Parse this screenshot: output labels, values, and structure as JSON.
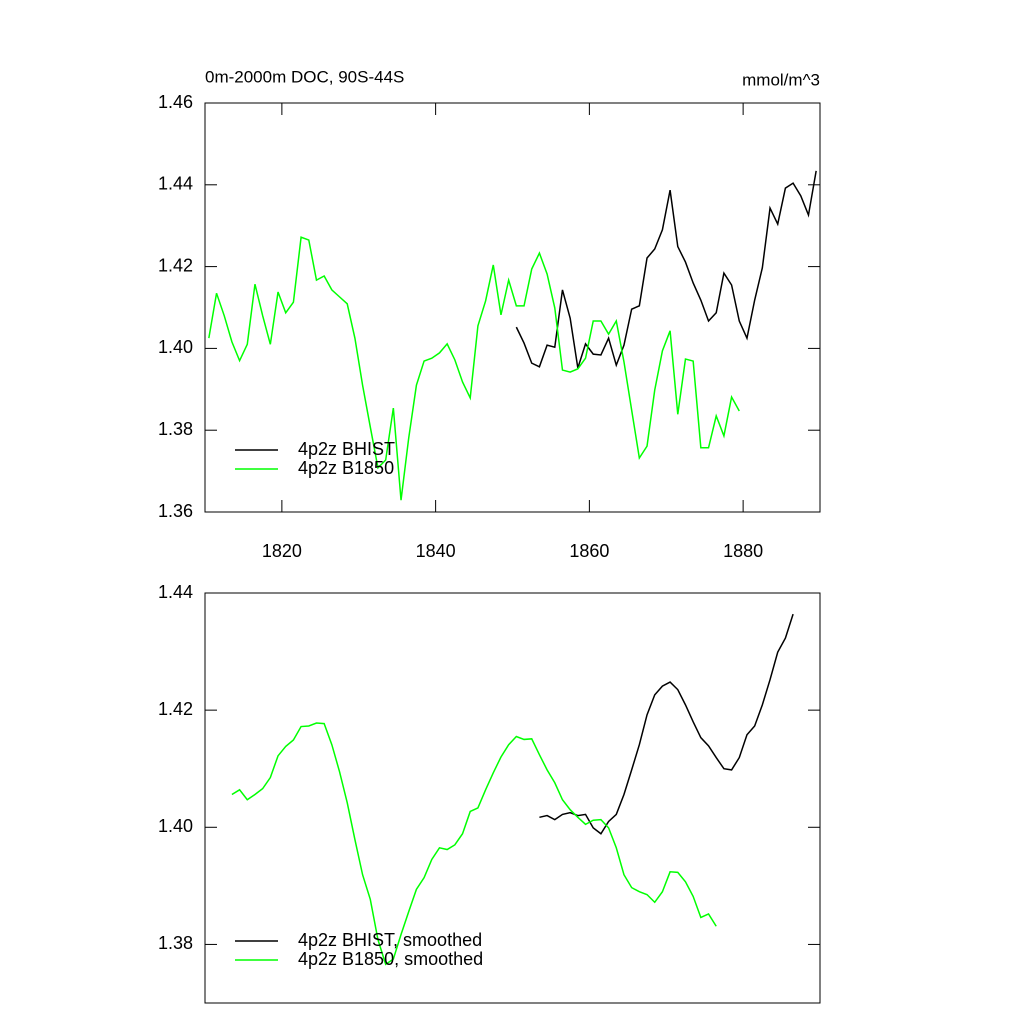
{
  "chart_data": [
    {
      "type": "line",
      "title": "0m-2000m DOC, 90S-44S",
      "subtitle": "mmol/m^3",
      "xlim": [
        1810,
        1890
      ],
      "xticks": [
        1820,
        1840,
        1860,
        1880
      ],
      "ylim": [
        1.36,
        1.46
      ],
      "yticks": [
        1.36,
        1.38,
        {
          "value": 1.4,
          "label": "1.40"
        },
        1.42,
        1.44,
        1.46
      ],
      "legend": "lower left",
      "series": [
        {
          "name": "4p2z BHIST",
          "color": "#000000",
          "x": [
            1850.5,
            1851.5,
            1852.5,
            1853.5,
            1854.5,
            1855.5,
            1856.5,
            1857.5,
            1858.5,
            1859.5,
            1860.5,
            1861.5,
            1862.5,
            1863.5,
            1864.5,
            1865.5,
            1866.5,
            1867.5,
            1868.5,
            1869.5,
            1870.5,
            1871.5,
            1872.5,
            1873.5,
            1874.5,
            1875.5,
            1876.5,
            1877.5,
            1878.5,
            1879.5,
            1880.5,
            1881.5,
            1882.5,
            1883.5,
            1884.5,
            1885.5,
            1886.5,
            1887.5,
            1888.5,
            1889.5
          ],
          "values": [
            1.4052,
            1.4013,
            1.3964,
            1.3955,
            1.4008,
            1.4003,
            1.4143,
            1.4074,
            1.3952,
            1.4011,
            1.3986,
            1.3984,
            1.4025,
            1.3959,
            1.4008,
            1.4096,
            1.4104,
            1.4221,
            1.4243,
            1.429,
            1.4387,
            1.4249,
            1.4211,
            1.416,
            1.4118,
            1.4067,
            1.4087,
            1.4184,
            1.4155,
            1.4067,
            1.4025,
            1.4118,
            1.4197,
            1.4343,
            1.4304,
            1.4392,
            1.4404,
            1.4373,
            1.4326,
            1.4434
          ]
        },
        {
          "name": "4p2z B1850",
          "color": "#00ff00",
          "x": [
            1810.5,
            1811.5,
            1812.5,
            1813.5,
            1814.5,
            1815.5,
            1816.5,
            1817.5,
            1818.5,
            1819.5,
            1820.5,
            1821.5,
            1822.5,
            1823.5,
            1824.5,
            1825.5,
            1826.5,
            1827.5,
            1828.5,
            1829.5,
            1830.5,
            1831.5,
            1832.5,
            1833.5,
            1834.5,
            1835.5,
            1836.5,
            1837.5,
            1838.5,
            1839.5,
            1840.5,
            1841.5,
            1842.5,
            1843.5,
            1844.5,
            1845.5,
            1846.5,
            1847.5,
            1848.5,
            1849.5,
            1850.5,
            1851.5,
            1852.5,
            1853.5,
            1854.5,
            1855.5,
            1856.5,
            1857.5,
            1858.5,
            1859.5,
            1860.5,
            1861.5,
            1862.5,
            1863.5,
            1864.5,
            1865.5,
            1866.5,
            1867.5,
            1868.5,
            1869.5,
            1870.5,
            1871.5,
            1872.5,
            1873.5,
            1874.5,
            1875.5,
            1876.5,
            1877.5,
            1878.5,
            1879.5
          ],
          "values": [
            1.4025,
            1.4135,
            1.408,
            1.4016,
            1.397,
            1.401,
            1.4157,
            1.408,
            1.401,
            1.4138,
            1.4087,
            1.4113,
            1.4272,
            1.4265,
            1.4167,
            1.4177,
            1.4143,
            1.4126,
            1.4109,
            1.4025,
            1.391,
            1.3808,
            1.3708,
            1.3727,
            1.3854,
            1.3629,
            1.3781,
            1.391,
            1.3969,
            1.3976,
            1.3989,
            1.4011,
            1.3972,
            1.3918,
            1.3879,
            1.4055,
            1.4116,
            1.4204,
            1.4082,
            1.4167,
            1.4104,
            1.4104,
            1.4194,
            1.4233,
            1.4182,
            1.4099,
            1.3947,
            1.3942,
            1.395,
            1.3976,
            1.4067,
            1.4067,
            1.4035,
            1.4067,
            1.3967,
            1.3849,
            1.3732,
            1.3761,
            1.3898,
            1.3994,
            1.4043,
            1.3839,
            1.3974,
            1.3969,
            1.3757,
            1.3757,
            1.3835,
            1.3786,
            1.3881,
            1.3847
          ]
        }
      ]
    },
    {
      "type": "line",
      "xlim": [
        1810,
        1890
      ],
      "ylim": [
        1.37,
        1.44
      ],
      "yticks": [
        1.38,
        {
          "value": 1.4,
          "label": "1.40"
        },
        1.42,
        1.44
      ],
      "legend": "lower left",
      "series": [
        {
          "name": "4p2z BHIST, smoothed",
          "color": "#000000",
          "x": [
            1853.5,
            1854.5,
            1855.5,
            1856.5,
            1857.5,
            1858.5,
            1859.5,
            1860.5,
            1861.5,
            1862.5,
            1863.5,
            1864.5,
            1865.5,
            1866.5,
            1867.5,
            1868.5,
            1869.5,
            1870.5,
            1871.5,
            1872.5,
            1873.5,
            1874.5,
            1875.5,
            1876.5,
            1877.5,
            1878.5,
            1879.5,
            1880.5,
            1881.5,
            1882.5,
            1883.5,
            1884.5,
            1885.5,
            1886.5
          ],
          "values": [
            1.4017,
            1.402,
            1.4013,
            1.4022,
            1.4025,
            1.402,
            1.4022,
            1.3999,
            1.3989,
            1.401,
            1.4022,
            1.4056,
            1.4098,
            1.4141,
            1.4192,
            1.4226,
            1.4241,
            1.4248,
            1.4235,
            1.4209,
            1.418,
            1.4153,
            1.4139,
            1.4119,
            1.41,
            1.4098,
            1.4119,
            1.4158,
            1.4173,
            1.4209,
            1.4252,
            1.4299,
            1.4323,
            1.4364
          ]
        },
        {
          "name": "4p2z B1850, smoothed",
          "color": "#00ff00",
          "x": [
            1813.5,
            1814.5,
            1815.5,
            1816.5,
            1817.5,
            1818.5,
            1819.5,
            1820.5,
            1821.5,
            1822.5,
            1823.5,
            1824.5,
            1825.5,
            1826.5,
            1827.5,
            1828.5,
            1829.5,
            1830.5,
            1831.5,
            1832.5,
            1833.5,
            1834.5,
            1835.5,
            1836.5,
            1837.5,
            1838.5,
            1839.5,
            1840.5,
            1841.5,
            1842.5,
            1843.5,
            1844.5,
            1845.5,
            1846.5,
            1847.5,
            1848.5,
            1849.5,
            1850.5,
            1851.5,
            1852.5,
            1853.5,
            1854.5,
            1855.5,
            1856.5,
            1857.5,
            1858.5,
            1859.5,
            1860.5,
            1861.5,
            1862.5,
            1863.5,
            1864.5,
            1865.5,
            1866.5,
            1867.5,
            1868.5,
            1869.5,
            1870.5,
            1871.5,
            1872.5,
            1873.5,
            1874.5,
            1875.5,
            1876.5
          ],
          "values": [
            1.4056,
            1.4064,
            1.4047,
            1.4056,
            1.4066,
            1.4085,
            1.4122,
            1.4138,
            1.4149,
            1.4172,
            1.4173,
            1.4178,
            1.4177,
            1.4141,
            1.4095,
            1.4042,
            1.3979,
            1.3919,
            1.3877,
            1.3808,
            1.3766,
            1.3775,
            1.3817,
            1.3856,
            1.3894,
            1.3914,
            1.3945,
            1.3965,
            1.3962,
            1.397,
            1.3989,
            1.4027,
            1.4033,
            1.4064,
            1.4093,
            1.412,
            1.4141,
            1.4155,
            1.415,
            1.4151,
            1.4124,
            1.4098,
            1.4076,
            1.4047,
            1.403,
            1.4017,
            1.4005,
            1.4012,
            1.4013,
            1.3999,
            1.3965,
            1.3919,
            1.3897,
            1.389,
            1.3885,
            1.3872,
            1.389,
            1.3924,
            1.3923,
            1.3907,
            1.3882,
            1.3846,
            1.3852,
            1.3831
          ]
        }
      ]
    }
  ]
}
